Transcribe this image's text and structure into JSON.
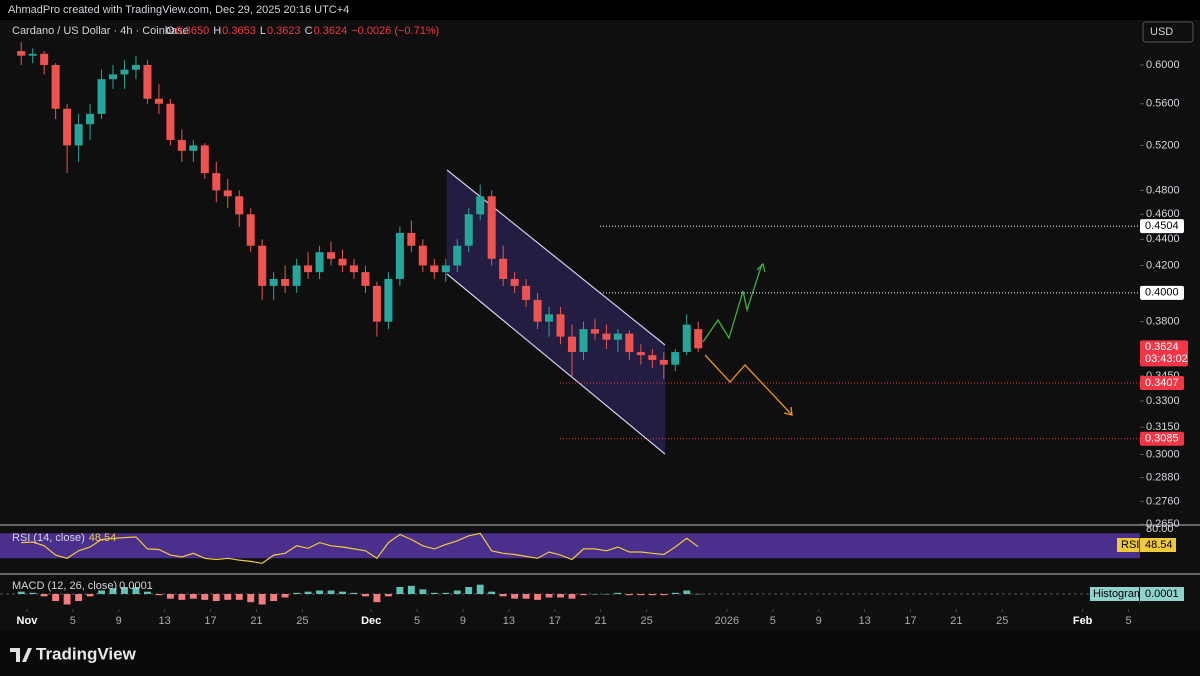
{
  "header": {
    "credit": "AhmadPro created with TradingView.com, Dec 29, 2025 20:16 UTC+4",
    "currency": "USD",
    "brand": "TradingView"
  },
  "chart_data": [
    {
      "type": "candlestick",
      "title": "Cardano / US Dollar · 4h · Coinbase",
      "ohlc": [
        {
          "label": "O",
          "value": "0.3650"
        },
        {
          "label": "H",
          "value": "0.3653"
        },
        {
          "label": "L",
          "value": "0.3623"
        },
        {
          "label": "C",
          "value": "0.3624"
        }
      ],
      "change": "−0.0026 (−0.71%)",
      "up_color": "#26a69a",
      "down_color": "#ef5350",
      "log_scale": true,
      "ylim": [
        0.267,
        0.65
      ],
      "yticks": [
        {
          "value": 0.6,
          "label": "0.6000"
        },
        {
          "value": 0.56,
          "label": "0.5600"
        },
        {
          "value": 0.52,
          "label": "0.5200"
        },
        {
          "value": 0.48,
          "label": "0.4800"
        },
        {
          "value": 0.46,
          "label": "0.4600"
        },
        {
          "value": 0.44,
          "label": "0.4400"
        },
        {
          "value": 0.42,
          "label": "0.4200"
        },
        {
          "value": 0.38,
          "label": "0.3800"
        },
        {
          "value": 0.345,
          "label": "0.3450"
        },
        {
          "value": 0.33,
          "label": "0.3300"
        },
        {
          "value": 0.315,
          "label": "0.3150"
        },
        {
          "value": 0.3,
          "label": "0.3000"
        },
        {
          "value": 0.288,
          "label": "0.2880"
        },
        {
          "value": 0.276,
          "label": "0.2760"
        },
        {
          "value": 0.265,
          "label": "0.2650"
        }
      ],
      "xlim": [
        "2025-10-30",
        "2026-02-06"
      ],
      "xticks": [
        {
          "value": "2025-11-01",
          "label": "Nov"
        },
        {
          "value": "2025-11-05",
          "label": "5"
        },
        {
          "value": "2025-11-09",
          "label": "9"
        },
        {
          "value": "2025-11-13",
          "label": "13"
        },
        {
          "value": "2025-11-17",
          "label": "17"
        },
        {
          "value": "2025-11-21",
          "label": "21"
        },
        {
          "value": "2025-11-25",
          "label": "25"
        },
        {
          "value": "2025-12-01",
          "label": "Dec"
        },
        {
          "value": "2025-12-05",
          "label": "5"
        },
        {
          "value": "2025-12-09",
          "label": "9"
        },
        {
          "value": "2025-12-13",
          "label": "13"
        },
        {
          "value": "2025-12-17",
          "label": "17"
        },
        {
          "value": "2025-12-21",
          "label": "21"
        },
        {
          "value": "2025-12-25",
          "label": "25"
        },
        {
          "value": "2026-01-01",
          "label": "2026"
        },
        {
          "value": "2026-01-05",
          "label": "5"
        },
        {
          "value": "2026-01-09",
          "label": "9"
        },
        {
          "value": "2026-01-13",
          "label": "13"
        },
        {
          "value": "2026-01-17",
          "label": "17"
        },
        {
          "value": "2026-01-21",
          "label": "21"
        },
        {
          "value": "2026-01-25",
          "label": "25"
        },
        {
          "value": "2026-02-01",
          "label": "Feb"
        },
        {
          "value": "2026-02-05",
          "label": "5"
        }
      ],
      "x": [
        "2025-10-31",
        "2025-11-01",
        "2025-11-02",
        "2025-11-03",
        "2025-11-04",
        "2025-11-05",
        "2025-11-06",
        "2025-11-07",
        "2025-11-08",
        "2025-11-09",
        "2025-11-10",
        "2025-11-11",
        "2025-11-12",
        "2025-11-13",
        "2025-11-14",
        "2025-11-15",
        "2025-11-16",
        "2025-11-17",
        "2025-11-18",
        "2025-11-19",
        "2025-11-20",
        "2025-11-21",
        "2025-11-22",
        "2025-11-23",
        "2025-11-24",
        "2025-11-25",
        "2025-11-26",
        "2025-11-27",
        "2025-11-28",
        "2025-11-29",
        "2025-11-30",
        "2025-12-01",
        "2025-12-02",
        "2025-12-03",
        "2025-12-04",
        "2025-12-05",
        "2025-12-06",
        "2025-12-07",
        "2025-12-08",
        "2025-12-09",
        "2025-12-10",
        "2025-12-11",
        "2025-12-12",
        "2025-12-13",
        "2025-12-14",
        "2025-12-15",
        "2025-12-16",
        "2025-12-17",
        "2025-12-18",
        "2025-12-19",
        "2025-12-20",
        "2025-12-21",
        "2025-12-22",
        "2025-12-23",
        "2025-12-24",
        "2025-12-25",
        "2025-12-26",
        "2025-12-27",
        "2025-12-28",
        "2025-12-29"
      ],
      "open": [
        0.615,
        0.61,
        0.612,
        0.6,
        0.555,
        0.52,
        0.54,
        0.55,
        0.585,
        0.59,
        0.595,
        0.6,
        0.565,
        0.56,
        0.525,
        0.515,
        0.52,
        0.495,
        0.48,
        0.475,
        0.46,
        0.435,
        0.405,
        0.41,
        0.405,
        0.42,
        0.415,
        0.43,
        0.425,
        0.42,
        0.415,
        0.405,
        0.38,
        0.41,
        0.445,
        0.435,
        0.42,
        0.415,
        0.42,
        0.435,
        0.46,
        0.475,
        0.425,
        0.41,
        0.405,
        0.395,
        0.38,
        0.385,
        0.37,
        0.36,
        0.375,
        0.372,
        0.368,
        0.372,
        0.36,
        0.358,
        0.355,
        0.352,
        0.36,
        0.375
      ],
      "high": [
        0.625,
        0.618,
        0.615,
        0.602,
        0.56,
        0.55,
        0.56,
        0.595,
        0.6,
        0.605,
        0.61,
        0.605,
        0.58,
        0.565,
        0.535,
        0.525,
        0.522,
        0.505,
        0.49,
        0.48,
        0.465,
        0.44,
        0.415,
        0.42,
        0.425,
        0.43,
        0.435,
        0.438,
        0.432,
        0.425,
        0.42,
        0.408,
        0.415,
        0.45,
        0.455,
        0.44,
        0.425,
        0.425,
        0.44,
        0.465,
        0.485,
        0.48,
        0.435,
        0.415,
        0.41,
        0.4,
        0.39,
        0.39,
        0.378,
        0.38,
        0.382,
        0.378,
        0.375,
        0.374,
        0.365,
        0.362,
        0.36,
        0.362,
        0.385,
        0.38
      ],
      "low": [
        0.6,
        0.602,
        0.59,
        0.545,
        0.495,
        0.505,
        0.525,
        0.545,
        0.575,
        0.575,
        0.585,
        0.56,
        0.55,
        0.52,
        0.505,
        0.505,
        0.49,
        0.47,
        0.465,
        0.45,
        0.43,
        0.395,
        0.395,
        0.4,
        0.4,
        0.41,
        0.41,
        0.42,
        0.415,
        0.41,
        0.4,
        0.37,
        0.375,
        0.405,
        0.43,
        0.415,
        0.41,
        0.408,
        0.415,
        0.43,
        0.455,
        0.42,
        0.405,
        0.4,
        0.39,
        0.375,
        0.37,
        0.365,
        0.345,
        0.355,
        0.368,
        0.362,
        0.36,
        0.355,
        0.352,
        0.35,
        0.343,
        0.348,
        0.358,
        0.36
      ],
      "close": [
        0.61,
        0.612,
        0.6,
        0.555,
        0.52,
        0.54,
        0.55,
        0.585,
        0.59,
        0.595,
        0.6,
        0.565,
        0.56,
        0.525,
        0.515,
        0.52,
        0.495,
        0.48,
        0.475,
        0.46,
        0.435,
        0.405,
        0.41,
        0.405,
        0.42,
        0.415,
        0.43,
        0.425,
        0.42,
        0.415,
        0.405,
        0.38,
        0.41,
        0.445,
        0.435,
        0.42,
        0.415,
        0.42,
        0.435,
        0.46,
        0.475,
        0.425,
        0.41,
        0.405,
        0.395,
        0.38,
        0.385,
        0.37,
        0.36,
        0.375,
        0.372,
        0.368,
        0.372,
        0.36,
        0.358,
        0.355,
        0.352,
        0.36,
        0.378,
        0.3624
      ],
      "last_price": {
        "value": 0.3624,
        "label": "0.3624",
        "countdown": "03:43:02",
        "color": "#f23645"
      },
      "levels": [
        {
          "value": 0.4504,
          "label": "0.4504",
          "color": "#ffffff"
        },
        {
          "value": 0.4,
          "label": "0.4000",
          "color": "#ffffff"
        },
        {
          "value": 0.3407,
          "label": "0.3407",
          "color": "#f23645"
        },
        {
          "value": 0.3085,
          "label": "0.3085",
          "color": "#f23645"
        }
      ]
    },
    {
      "type": "line",
      "title": "RSI (14, close)",
      "value_label": "48.54",
      "axis_label": "RSI",
      "color": "#f0c93b",
      "band": [
        30,
        70
      ],
      "band_color": "#4a2f8c",
      "ylim": [
        8,
        80
      ],
      "yticks": [
        {
          "value": 80,
          "label": "80.00"
        }
      ],
      "values": [
        55,
        56,
        50,
        35,
        30,
        42,
        48,
        60,
        62,
        63,
        64,
        45,
        44,
        35,
        32,
        38,
        30,
        28,
        30,
        27,
        25,
        22,
        35,
        38,
        50,
        46,
        55,
        50,
        48,
        45,
        42,
        30,
        55,
        68,
        60,
        50,
        45,
        52,
        58,
        66,
        70,
        42,
        38,
        36,
        33,
        30,
        40,
        35,
        28,
        45,
        45,
        42,
        48,
        40,
        40,
        38,
        36,
        48,
        62,
        48.54
      ]
    },
    {
      "type": "histogram",
      "title": "MACD (12, 26, close)",
      "value_label": "0.0001",
      "axis_label": "Histogram",
      "up_color": "#5fc2b5",
      "down_color": "#f77c80",
      "ylim": [
        -0.012,
        0.012
      ],
      "values": [
        0.002,
        0.001,
        -0.002,
        -0.006,
        -0.009,
        -0.006,
        -0.002,
        0.003,
        0.005,
        0.006,
        0.006,
        0.002,
        -0.001,
        -0.004,
        -0.005,
        -0.004,
        -0.005,
        -0.006,
        -0.005,
        -0.005,
        -0.007,
        -0.009,
        -0.006,
        -0.003,
        0.001,
        0.002,
        0.003,
        0.003,
        0.002,
        0.001,
        -0.002,
        -0.007,
        -0.002,
        0.006,
        0.007,
        0.004,
        0.001,
        0.001,
        0.003,
        0.006,
        0.008,
        0.002,
        -0.002,
        -0.004,
        -0.004,
        -0.005,
        -0.003,
        -0.003,
        -0.004,
        -0.001,
        0,
        0,
        0.001,
        -0.001,
        -0.001,
        -0.001,
        -0.001,
        0.001,
        0.003,
        0.0001
      ]
    }
  ]
}
